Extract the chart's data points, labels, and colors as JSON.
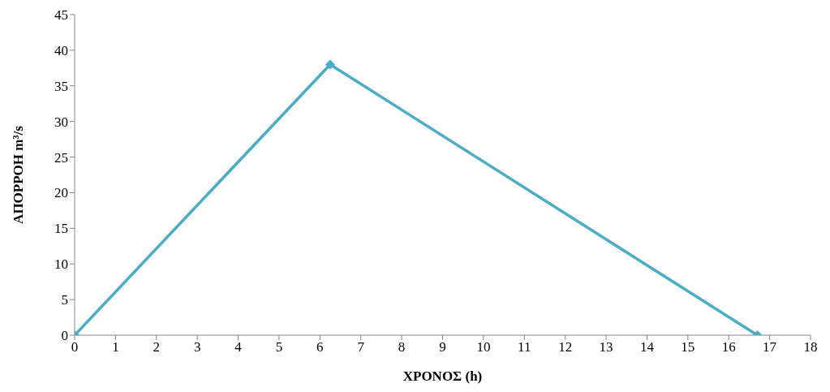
{
  "chart_data": {
    "type": "line",
    "xlabel": "ΧΡΟΝΟΣ (h)",
    "ylabel": "ΑΠΟΡΡΟΗ m³/s",
    "x": [
      0,
      6.25,
      16.7
    ],
    "series": [
      {
        "color": "#4bacc6",
        "values": [
          0,
          38,
          0
        ]
      }
    ],
    "xlim": [
      0,
      18
    ],
    "xticks": [
      0,
      1,
      2,
      3,
      4,
      5,
      6,
      7,
      8,
      9,
      10,
      11,
      12,
      13,
      14,
      15,
      16,
      17,
      18
    ],
    "ylim": [
      0,
      45
    ],
    "yticks": [
      0,
      5,
      10,
      15,
      20,
      25,
      30,
      35,
      40,
      45
    ],
    "grid": false,
    "legend": false,
    "marker": "diamond",
    "line_style": "solid"
  }
}
